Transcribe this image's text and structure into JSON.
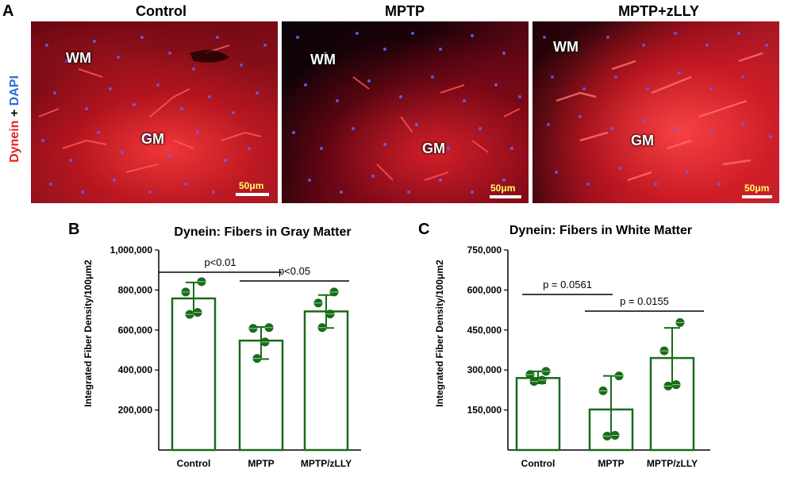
{
  "panel_a": {
    "letter": "A",
    "side_label": {
      "dynein": "Dynein",
      "plus": "+",
      "dapi": "DAPI"
    },
    "columns": [
      {
        "title": "Control",
        "wm": "WM",
        "gm": "GM",
        "scale": "50μm"
      },
      {
        "title": "MPTP",
        "wm": "WM",
        "gm": "GM",
        "scale": "50μm"
      },
      {
        "title": "MPTP+zLLY",
        "wm": "WM",
        "gm": "GM",
        "scale": "50μm"
      }
    ]
  },
  "panel_b": {
    "letter": "B"
  },
  "panel_c": {
    "letter": "C"
  },
  "chart_data": [
    {
      "type": "bar",
      "title": "Dynein: Fibers in Gray Matter",
      "ylabel": "Integrated Fiber Density/100μm2",
      "xlabel": "",
      "categories": [
        "Control",
        "MPTP",
        "MPTP/zLLY"
      ],
      "values": [
        758000,
        547000,
        693000
      ],
      "error_high": [
        838000,
        615000,
        775000
      ],
      "error_low": [
        680000,
        455000,
        610000
      ],
      "points": [
        [
          842000,
          790000,
          688000,
          678000
        ],
        [
          612000,
          608000,
          540000,
          458000
        ],
        [
          790000,
          735000,
          680000,
          612000
        ]
      ],
      "ylim": [
        0,
        1000000
      ],
      "yticks": [
        200000,
        400000,
        600000,
        800000,
        1000000
      ],
      "ytick_labels": [
        "200,000",
        "400,000",
        "600,000",
        "800,000",
        "1,000,000"
      ],
      "bar_color": "#1a6b1a",
      "annotations": [
        {
          "text": "p<0.01",
          "from": 0,
          "to": 1
        },
        {
          "text": "p<0.05",
          "from": 1,
          "to": 2
        }
      ]
    },
    {
      "type": "bar",
      "title": "Dynein: Fibers in White Matter",
      "ylabel": "Integrated Fiber Density/100μm2",
      "xlabel": "",
      "categories": [
        "Control",
        "MPTP",
        "MPTP/zLLY"
      ],
      "values": [
        270000,
        152000,
        345000
      ],
      "error_high": [
        295000,
        278000,
        458000
      ],
      "error_low": [
        250000,
        52000,
        240000
      ],
      "points": [
        [
          295000,
          283000,
          262000,
          257000
        ],
        [
          278000,
          222000,
          55000,
          52000
        ],
        [
          478000,
          372000,
          245000,
          240000
        ]
      ],
      "ylim": [
        0,
        750000
      ],
      "yticks": [
        150000,
        300000,
        450000,
        600000,
        750000
      ],
      "ytick_labels": [
        "150,000",
        "300,000",
        "450,000",
        "600,000",
        "750,000"
      ],
      "bar_color": "#1a6b1a",
      "annotations": [
        {
          "text": "p = 0.0561",
          "from": 0,
          "to": 1
        },
        {
          "text": "p = 0.0155",
          "from": 1,
          "to": 2
        }
      ]
    }
  ]
}
